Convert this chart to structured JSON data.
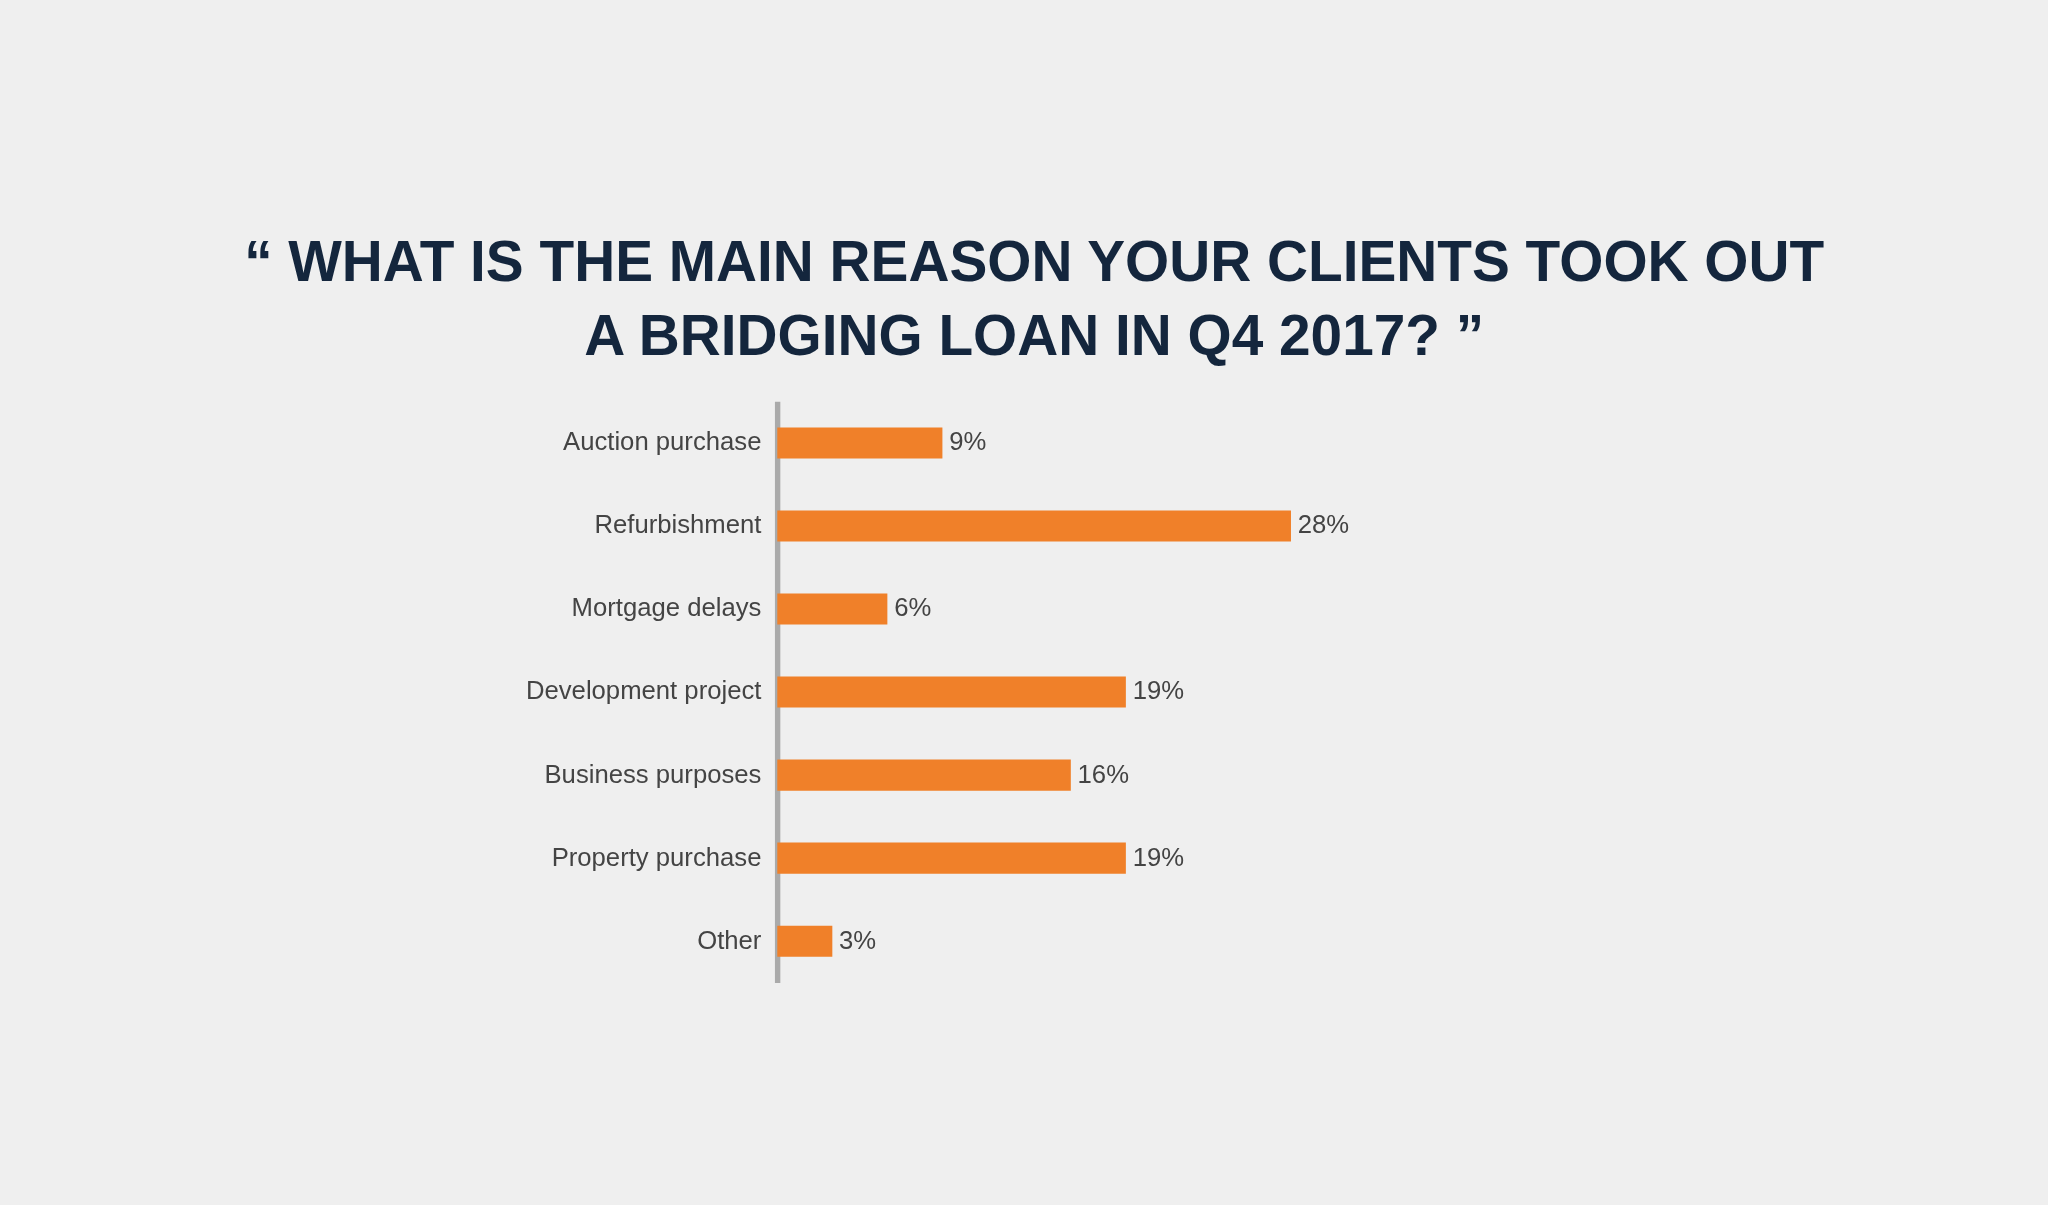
{
  "chart_data": {
    "type": "bar",
    "orientation": "horizontal",
    "title": "“ WHAT IS THE MAIN REASON YOUR CLIENTS TOOK OUT A BRIDGING LOAN IN Q4 2017? ”",
    "categories": [
      "Auction purchase",
      "Refurbishment",
      "Mortgage delays",
      "Development project",
      "Business purposes",
      "Property purchase",
      "Other"
    ],
    "values": [
      9,
      28,
      6,
      19,
      16,
      19,
      3
    ],
    "value_labels": [
      "9%",
      "28%",
      "6%",
      "19%",
      "16%",
      "19%",
      "3%"
    ],
    "color": "#f08029",
    "grid": false
  }
}
